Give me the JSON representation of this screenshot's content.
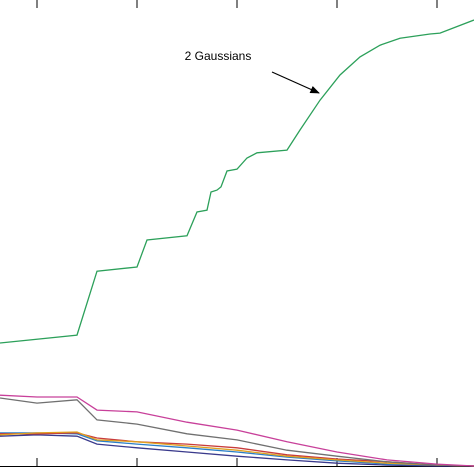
{
  "chart_data": {
    "type": "line",
    "annotation": "2 Gaussians",
    "xlim": [
      0.63,
      5.37
    ],
    "xticks": [
      1,
      2,
      3,
      4,
      5
    ],
    "ylim": [
      0,
      1
    ],
    "series": [
      {
        "color": "#2ca05a",
        "x": [
          0.63,
          1.4,
          1.6,
          2.0,
          2.1,
          2.5,
          2.6,
          2.7,
          2.74,
          2.8,
          2.84,
          2.9,
          3.0,
          3.1,
          3.2,
          3.5,
          3.63,
          3.83,
          4.03,
          4.23,
          4.43,
          4.63,
          4.93,
          5.03,
          5.37
        ],
        "values": [
          0.264,
          0.281,
          0.418,
          0.427,
          0.485,
          0.494,
          0.545,
          0.549,
          0.588,
          0.592,
          0.599,
          0.633,
          0.637,
          0.661,
          0.672,
          0.678,
          0.721,
          0.785,
          0.839,
          0.878,
          0.903,
          0.918,
          0.927,
          0.929,
          0.957
        ]
      },
      {
        "color": "#c8409a",
        "x": [
          0.63,
          1,
          1.4,
          1.6,
          2,
          2.5,
          3,
          3.5,
          4,
          4.5,
          5,
          5.37
        ],
        "values": [
          0.152,
          0.148,
          0.148,
          0.12,
          0.116,
          0.094,
          0.077,
          0.052,
          0.03,
          0.013,
          0.004,
          0
        ]
      },
      {
        "color": "#707070",
        "x": [
          0.63,
          1,
          1.4,
          1.6,
          2,
          2.5,
          3,
          3.5,
          4,
          4.5,
          5,
          5.37
        ],
        "values": [
          0.146,
          0.135,
          0.142,
          0.099,
          0.09,
          0.069,
          0.056,
          0.034,
          0.021,
          0.009,
          0.002,
          0
        ]
      },
      {
        "color": "#e0a020",
        "x": [
          0.63,
          1,
          1.4,
          1.6,
          2,
          2.5,
          3,
          3.5,
          4,
          4.5,
          5,
          5.37
        ],
        "values": [
          0.067,
          0.071,
          0.073,
          0.056,
          0.052,
          0.043,
          0.034,
          0.021,
          0.013,
          0.006,
          0.002,
          0
        ]
      },
      {
        "color": "#c83c3c",
        "x": [
          0.63,
          1,
          1.4,
          1.6,
          2,
          2.5,
          3,
          3.5,
          4,
          4.5,
          5,
          5.37
        ],
        "values": [
          0.069,
          0.069,
          0.071,
          0.06,
          0.052,
          0.047,
          0.039,
          0.024,
          0.015,
          0.009,
          0.002,
          0
        ]
      },
      {
        "color": "#2a7fc8",
        "x": [
          0.63,
          1,
          1.4,
          1.6,
          2,
          2.5,
          3,
          3.5,
          4,
          4.5,
          5,
          5.37
        ],
        "values": [
          0.071,
          0.071,
          0.069,
          0.054,
          0.047,
          0.039,
          0.03,
          0.019,
          0.011,
          0.004,
          0.002,
          0
        ]
      },
      {
        "color": "#3a3a8c",
        "x": [
          0.63,
          1,
          1.4,
          1.6,
          2,
          2.5,
          3,
          3.5,
          4,
          4.5,
          5,
          5.37
        ],
        "values": [
          0.064,
          0.067,
          0.064,
          0.047,
          0.039,
          0.03,
          0.021,
          0.013,
          0.006,
          0.002,
          0,
          0
        ]
      }
    ]
  }
}
